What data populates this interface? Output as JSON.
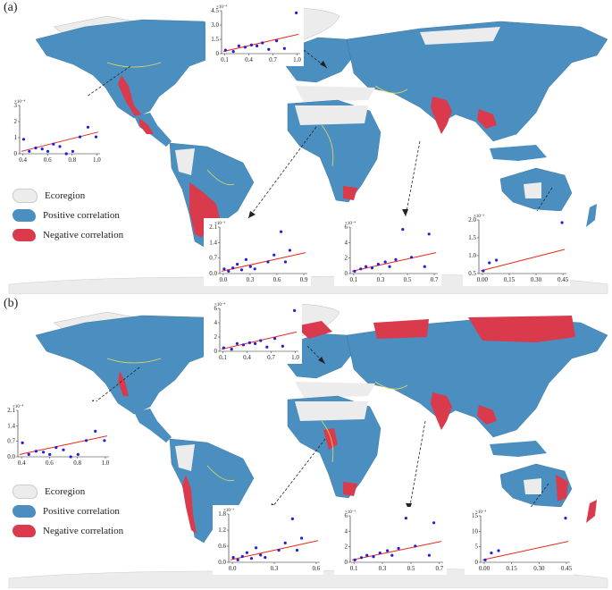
{
  "colors": {
    "ecoregion": "#ececec",
    "positive": "#4a8fc0",
    "negative": "#d93a4c",
    "points": "#1f1fdd",
    "fit_line": "#e62a1c",
    "river": "#e8d95a"
  },
  "legend": {
    "ecoregion": "Ecoregion",
    "positive": "Positive correlation",
    "negative": "Negative correlation"
  },
  "panels": [
    {
      "label": "(a)",
      "insets": [
        {
          "id": "na",
          "xticks": [
            "0.4",
            "0.6",
            "0.8",
            "1.0"
          ],
          "yticks": [
            "0",
            "1",
            "2",
            "3"
          ],
          "yexp": "×10⁻⁴"
        },
        {
          "id": "eu",
          "xticks": [
            "0.1",
            "0.4",
            "0.7",
            "1.0"
          ],
          "yticks": [
            "0",
            "1.5",
            "3.0",
            "4.5"
          ],
          "yexp": "×10⁻⁴"
        },
        {
          "id": "af",
          "xticks": [
            "0.0",
            "0.3",
            "0.6",
            "0.9"
          ],
          "yticks": [
            "0.0",
            "0.7",
            "1.4",
            "2.1"
          ],
          "yexp": "×10⁻³"
        },
        {
          "id": "as",
          "xticks": [
            "0.1",
            "0.3",
            "0.5",
            "0.7"
          ],
          "yticks": [
            "0",
            "2",
            "4",
            "6"
          ],
          "yexp": "×10⁻⁴"
        },
        {
          "id": "au",
          "xticks": [
            "0.00",
            "0.15",
            "0.30",
            "0.45"
          ],
          "yticks": [
            "0.5",
            "1.0",
            "1.5",
            "2.0"
          ],
          "yexp": "×10⁻³"
        }
      ]
    },
    {
      "label": "(b)",
      "insets": [
        {
          "id": "na",
          "xticks": [
            "0.4",
            "0.6",
            "0.8",
            "1.0"
          ],
          "yticks": [
            "0.0",
            "0.7",
            "1.4",
            "2.1"
          ],
          "yexp": "×10⁻⁴"
        },
        {
          "id": "eu",
          "xticks": [
            "0.1",
            "0.4",
            "0.7",
            "1.0"
          ],
          "yticks": [
            "0",
            "2",
            "4",
            "6"
          ],
          "yexp": "×10⁻⁴"
        },
        {
          "id": "af",
          "xticks": [
            "0.0",
            "0.3",
            "0.6"
          ],
          "yticks": [
            "0.0",
            "0.6",
            "1.2",
            "1.8"
          ],
          "yexp": "×10⁻³"
        },
        {
          "id": "as",
          "xticks": [
            "0.1",
            "0.3",
            "0.5",
            "0.7"
          ],
          "yticks": [
            "0",
            "2",
            "4",
            "6"
          ],
          "yexp": "×10⁻³"
        },
        {
          "id": "au",
          "xticks": [
            "0.00",
            "0.15",
            "0.30",
            "0.45"
          ],
          "yticks": [
            "0",
            "5",
            "10",
            "15"
          ],
          "yexp": "×10⁻⁴"
        }
      ]
    }
  ]
}
